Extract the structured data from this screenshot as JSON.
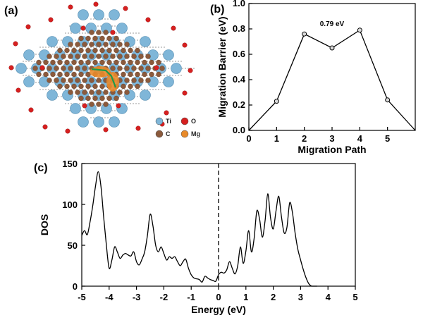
{
  "panels": {
    "a": {
      "label": "(a)",
      "legend": [
        {
          "symbol": "Ti",
          "color": "#7fb6d8"
        },
        {
          "symbol": "O",
          "color": "#d62020"
        },
        {
          "symbol": "C",
          "color": "#8b5a3c"
        },
        {
          "symbol": "Mg",
          "color": "#e88a2a"
        }
      ]
    },
    "b": {
      "label": "(b)"
    },
    "c": {
      "label": "(c)"
    }
  },
  "chart_data": [
    {
      "panel": "b",
      "type": "line",
      "xlabel": "Migration Path",
      "ylabel": "Migration Barrier (eV)",
      "xlim": [
        0,
        6
      ],
      "ylim": [
        0,
        1.0
      ],
      "xticks": [
        0,
        1,
        2,
        3,
        4,
        5
      ],
      "yticks": [
        0.0,
        0.2,
        0.4,
        0.6,
        0.8,
        1.0
      ],
      "ytick_labels": [
        "0.0",
        "0.2",
        "0.4",
        "0.6",
        "0.8",
        "1.0"
      ],
      "x": [
        0,
        1,
        2,
        3,
        4,
        5,
        6
      ],
      "y": [
        0.0,
        0.23,
        0.76,
        0.65,
        0.79,
        0.24,
        0.0
      ],
      "marker_x": [
        1,
        2,
        3,
        4,
        5
      ],
      "marker_y": [
        0.23,
        0.76,
        0.65,
        0.79,
        0.24
      ],
      "annotation": {
        "text": "0.79 eV",
        "x": 3.0,
        "y": 0.84
      },
      "grid": false
    },
    {
      "panel": "c",
      "type": "line",
      "xlabel": "Energy (eV)",
      "ylabel": "DOS",
      "xlim": [
        -5,
        5
      ],
      "ylim": [
        0,
        150
      ],
      "xticks": [
        -5,
        -4,
        -3,
        -2,
        -1,
        0,
        1,
        2,
        3,
        4,
        5
      ],
      "yticks": [
        0,
        50,
        100,
        150
      ],
      "fermi_level": 0,
      "x": [
        -5.0,
        -4.9,
        -4.8,
        -4.7,
        -4.6,
        -4.5,
        -4.4,
        -4.3,
        -4.2,
        -4.1,
        -4.0,
        -3.9,
        -3.8,
        -3.7,
        -3.6,
        -3.5,
        -3.4,
        -3.3,
        -3.2,
        -3.1,
        -3.0,
        -2.9,
        -2.8,
        -2.7,
        -2.6,
        -2.5,
        -2.4,
        -2.3,
        -2.2,
        -2.1,
        -2.0,
        -1.9,
        -1.8,
        -1.7,
        -1.6,
        -1.5,
        -1.4,
        -1.3,
        -1.2,
        -1.1,
        -1.0,
        -0.9,
        -0.8,
        -0.7,
        -0.6,
        -0.5,
        -0.4,
        -0.3,
        -0.2,
        -0.1,
        0.0,
        0.1,
        0.2,
        0.3,
        0.4,
        0.5,
        0.6,
        0.7,
        0.8,
        0.9,
        1.0,
        1.1,
        1.2,
        1.3,
        1.4,
        1.5,
        1.6,
        1.7,
        1.8,
        1.9,
        2.0,
        2.1,
        2.2,
        2.3,
        2.4,
        2.5,
        2.6,
        2.7,
        2.8,
        2.9,
        3.0,
        3.1,
        3.2,
        3.3,
        3.4,
        3.5,
        3.6
      ],
      "y": [
        62,
        68,
        63,
        78,
        98,
        122,
        140,
        122,
        85,
        50,
        22,
        32,
        48,
        42,
        34,
        38,
        40,
        38,
        37,
        42,
        30,
        26,
        33,
        42,
        62,
        88,
        74,
        50,
        42,
        48,
        40,
        32,
        36,
        34,
        36,
        30,
        25,
        30,
        33,
        22,
        14,
        10,
        9,
        8,
        5,
        12,
        10,
        8,
        7,
        6,
        14,
        17,
        16,
        20,
        30,
        22,
        15,
        25,
        48,
        28,
        43,
        68,
        42,
        58,
        92,
        82,
        60,
        80,
        113,
        84,
        70,
        92,
        110,
        85,
        65,
        72,
        102,
        90,
        65,
        45,
        32,
        20,
        10,
        3,
        0,
        0,
        0
      ],
      "grid": false
    }
  ]
}
